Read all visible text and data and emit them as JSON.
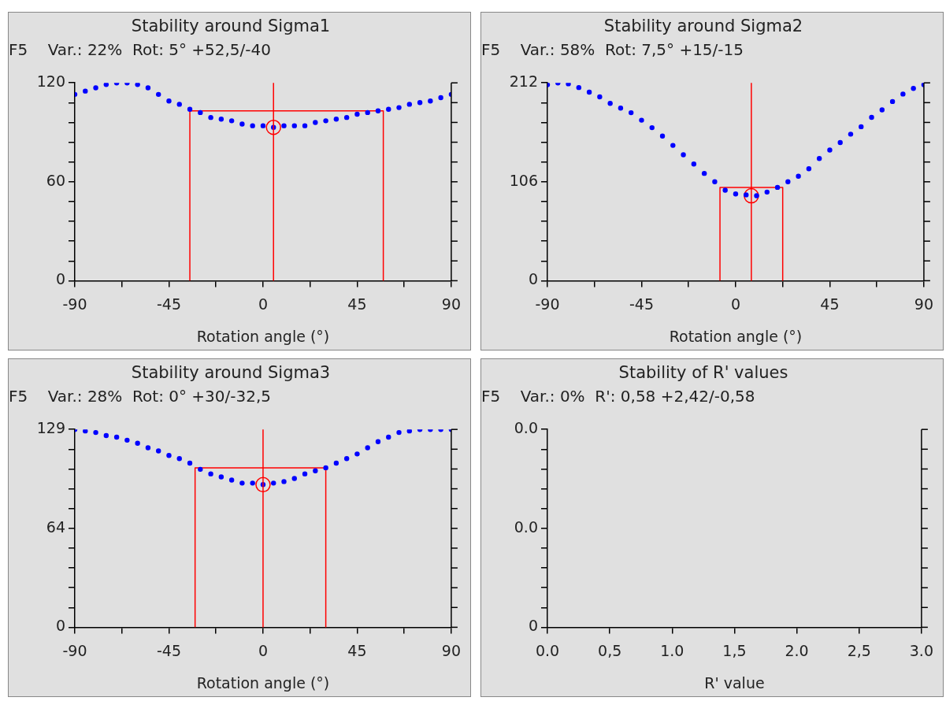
{
  "chart_data": [
    {
      "type": "scatter",
      "title": "Stability around Sigma1",
      "subtitle": "F5    Var.: 22%  Rot: 5° +52,5/-40",
      "xlabel": "Rotation angle (°)",
      "marker": "circle",
      "x": [
        -90,
        -85,
        -80,
        -75,
        -70,
        -65,
        -60,
        -55,
        -50,
        -45,
        -40,
        -35,
        -30,
        -25,
        -20,
        -15,
        -10,
        -5,
        0,
        5,
        10,
        15,
        20,
        25,
        30,
        35,
        40,
        45,
        50,
        55,
        60,
        65,
        70,
        75,
        80,
        85,
        90
      ],
      "series": [
        {
          "color": "#0000ff",
          "values": [
            113,
            115,
            117,
            119,
            120,
            120,
            119,
            117,
            113,
            109,
            107,
            104,
            102,
            99,
            98,
            97,
            95,
            94,
            94,
            93,
            94,
            94,
            94,
            96,
            97,
            98,
            99,
            101,
            102,
            103,
            104,
            105,
            107,
            108,
            109,
            111,
            113
          ]
        },
        {
          "type": "line",
          "marker": "none",
          "color": "#ff0000",
          "x": [
            -35,
            -35,
            57.5,
            57.5
          ],
          "values": [
            0,
            103,
            103,
            0
          ]
        },
        {
          "color": "#ff0000",
          "x": [
            5
          ],
          "values": [
            93
          ]
        }
      ],
      "ref_lines": [
        {
          "axis": "x",
          "value": 5,
          "color": "#ff0000"
        }
      ],
      "xlim": [
        -90,
        90
      ],
      "xticks": [
        -90,
        {
          "value": -67.5,
          "label": null
        },
        -45,
        {
          "value": -22.5,
          "label": null
        },
        0,
        {
          "value": 22.5,
          "label": null
        },
        45,
        {
          "value": 67.5,
          "label": null
        },
        90
      ],
      "ylim": [
        0,
        120
      ],
      "yticks": [
        0,
        {
          "value": 12,
          "label": null
        },
        {
          "value": 24,
          "label": null
        },
        {
          "value": 36,
          "label": null
        },
        {
          "value": 48,
          "label": null
        },
        60,
        {
          "value": 72,
          "label": null
        },
        {
          "value": 84,
          "label": null
        },
        {
          "value": 96,
          "label": null
        },
        {
          "value": 108,
          "label": null
        },
        120
      ]
    },
    {
      "type": "scatter",
      "title": "Stability around Sigma2",
      "subtitle": "F5    Var.: 58%  Rot: 7,5° +15/-15",
      "xlabel": "Rotation angle (°)",
      "marker": "circle",
      "x": [
        -90,
        -85,
        -80,
        -75,
        -70,
        -65,
        -60,
        -55,
        -50,
        -45,
        -40,
        -35,
        -30,
        -25,
        -20,
        -15,
        -10,
        -5,
        0,
        5,
        10,
        15,
        20,
        25,
        30,
        35,
        40,
        45,
        50,
        55,
        60,
        65,
        70,
        75,
        80,
        85,
        90
      ],
      "series": [
        {
          "color": "#0000ff",
          "values": [
            210,
            212,
            211,
            207,
            202,
            197,
            190,
            185,
            180,
            172,
            164,
            155,
            145,
            135,
            125,
            115,
            106,
            97,
            93,
            92,
            91,
            95,
            100,
            106,
            112,
            120,
            131,
            140,
            148,
            157,
            165,
            175,
            183,
            192,
            200,
            206,
            210
          ]
        },
        {
          "type": "line",
          "marker": "none",
          "color": "#ff0000",
          "x": [
            -7.5,
            -7.5,
            22.5,
            22.5
          ],
          "values": [
            0,
            100,
            100,
            0
          ]
        },
        {
          "color": "#ff0000",
          "x": [
            7.5
          ],
          "values": [
            91
          ]
        }
      ],
      "ref_lines": [
        {
          "axis": "x",
          "value": 7.5,
          "color": "#ff0000"
        }
      ],
      "xlim": [
        -90,
        90
      ],
      "xticks": [
        -90,
        {
          "value": -67.5,
          "label": null
        },
        -45,
        {
          "value": -22.5,
          "label": null
        },
        0,
        {
          "value": 22.5,
          "label": null
        },
        45,
        {
          "value": 67.5,
          "label": null
        },
        90
      ],
      "ylim": [
        0,
        212
      ],
      "yticks": [
        0,
        {
          "value": 21.2,
          "label": null
        },
        {
          "value": 42.4,
          "label": null
        },
        {
          "value": 63.6,
          "label": null
        },
        {
          "value": 84.8,
          "label": null
        },
        106,
        {
          "value": 127.2,
          "label": null
        },
        {
          "value": 148.4,
          "label": null
        },
        {
          "value": 169.6,
          "label": null
        },
        {
          "value": 190.8,
          "label": null
        },
        212
      ]
    },
    {
      "type": "scatter",
      "title": "Stability around Sigma3",
      "subtitle": "F5    Var.: 28%  Rot: 0° +30/-32,5",
      "xlabel": "Rotation angle (°)",
      "marker": "circle",
      "x": [
        -90,
        -85,
        -80,
        -75,
        -70,
        -65,
        -60,
        -55,
        -50,
        -45,
        -40,
        -35,
        -30,
        -25,
        -20,
        -15,
        -10,
        -5,
        0,
        5,
        10,
        15,
        20,
        25,
        30,
        35,
        40,
        45,
        50,
        55,
        60,
        65,
        70,
        75,
        80,
        85,
        90
      ],
      "series": [
        {
          "color": "#0000ff",
          "values": [
            129,
            128,
            127,
            125,
            124,
            122,
            120,
            117,
            115,
            112,
            110,
            107,
            103,
            100,
            98,
            96,
            94,
            94,
            93,
            94,
            95,
            97,
            100,
            102,
            104,
            107,
            110,
            113,
            117,
            121,
            124,
            127,
            128,
            129,
            129,
            129,
            129
          ]
        },
        {
          "type": "line",
          "marker": "none",
          "color": "#ff0000",
          "x": [
            -32.5,
            -32.5,
            30,
            30
          ],
          "values": [
            0,
            104,
            104,
            0
          ]
        },
        {
          "color": "#ff0000",
          "x": [
            0
          ],
          "values": [
            93
          ]
        }
      ],
      "ref_lines": [
        {
          "axis": "x",
          "value": 0,
          "color": "#ff0000"
        }
      ],
      "xlim": [
        -90,
        90
      ],
      "xticks": [
        -90,
        {
          "value": -67.5,
          "label": null
        },
        -45,
        {
          "value": -22.5,
          "label": null
        },
        0,
        {
          "value": 22.5,
          "label": null
        },
        45,
        {
          "value": 67.5,
          "label": null
        },
        90
      ],
      "ylim": [
        0,
        129
      ],
      "yticks": [
        0,
        {
          "value": 12.9,
          "label": null
        },
        {
          "value": 25.8,
          "label": null
        },
        {
          "value": 38.7,
          "label": null
        },
        {
          "value": 51.6,
          "label": null
        },
        {
          "value": 64.5,
          "label": "64"
        },
        {
          "value": 77.4,
          "label": null
        },
        {
          "value": 90.3,
          "label": null
        },
        {
          "value": 103.2,
          "label": null
        },
        {
          "value": 116.1,
          "label": null
        },
        129
      ]
    },
    {
      "type": "scatter",
      "title": "Stability of R' values",
      "subtitle": "F5    Var.: 0%  R': 0,58 +2,42/-0,58",
      "xlabel": "R' value",
      "xlim": [
        0,
        3
      ],
      "xticks": [
        {
          "value": 0,
          "label": "0.0"
        },
        {
          "value": 0.5,
          "label": "0,5"
        },
        {
          "value": 1,
          "label": "1.0"
        },
        {
          "value": 1.5,
          "label": "1,5"
        },
        {
          "value": 2,
          "label": "2.0"
        },
        {
          "value": 2.5,
          "label": "2,5"
        },
        {
          "value": 3,
          "label": "3.0"
        }
      ],
      "ylim": [
        0,
        0.04
      ],
      "yticks": [
        0,
        {
          "value": 0.004,
          "label": null
        },
        {
          "value": 0.008,
          "label": null
        },
        {
          "value": 0.012,
          "label": null
        },
        {
          "value": 0.016,
          "label": null
        },
        {
          "value": 0.02,
          "label": "0.0"
        },
        {
          "value": 0.024,
          "label": null
        },
        {
          "value": 0.028,
          "label": null
        },
        {
          "value": 0.032,
          "label": null
        },
        {
          "value": 0.036,
          "label": null
        },
        {
          "value": 0.04,
          "label": "0.0"
        }
      ]
    }
  ]
}
